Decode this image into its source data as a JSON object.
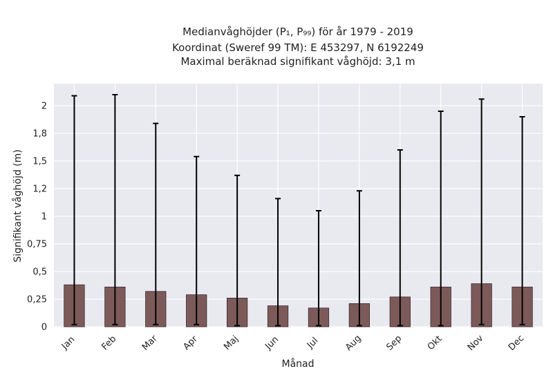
{
  "chart_data": {
    "type": "bar",
    "title_lines": [
      "Medianvåghöjder (P₁, P₉₉) för år 1979 - 2019",
      "Koordinat (Sweref 99 TM): E 453297, N 6192249",
      "Maximal beräknad signifikant våghöjd: 3,1 m"
    ],
    "xlabel": "Månad",
    "ylabel": "Signifikant våghöjd (m)",
    "categories": [
      "Jan",
      "Feb",
      "Mar",
      "Apr",
      "Maj",
      "Jun",
      "Jul",
      "Aug",
      "Sep",
      "Okt",
      "Nov",
      "Dec"
    ],
    "series": [
      {
        "values": [
          0.38,
          0.36,
          0.32,
          0.29,
          0.26,
          0.19,
          0.17,
          0.21,
          0.27,
          0.36,
          0.39,
          0.36
        ],
        "error_low": [
          0.02,
          0.02,
          0.02,
          0.02,
          0.01,
          0.01,
          0.01,
          0.01,
          0.01,
          0.01,
          0.02,
          0.02
        ],
        "error_high": [
          2.09,
          2.1,
          1.84,
          1.54,
          1.37,
          1.16,
          1.05,
          1.23,
          1.6,
          1.95,
          2.06,
          1.9
        ]
      }
    ],
    "ylim": [
      0,
      2.2
    ],
    "yticks": [
      0,
      0.25,
      0.5,
      0.75,
      1,
      1.25,
      1.5,
      1.75,
      2
    ],
    "ytick_labels": [
      "0",
      "0,25",
      "0,5",
      "0,75",
      "1",
      "1,2",
      "1,5",
      "1,8",
      "2"
    ],
    "grid": true,
    "colors": {
      "bar": "#7d5a5a",
      "bar_edge": "#3b2b2b",
      "error": "#000000",
      "background": "#e9e9f0",
      "grid": "#ffffff"
    }
  }
}
